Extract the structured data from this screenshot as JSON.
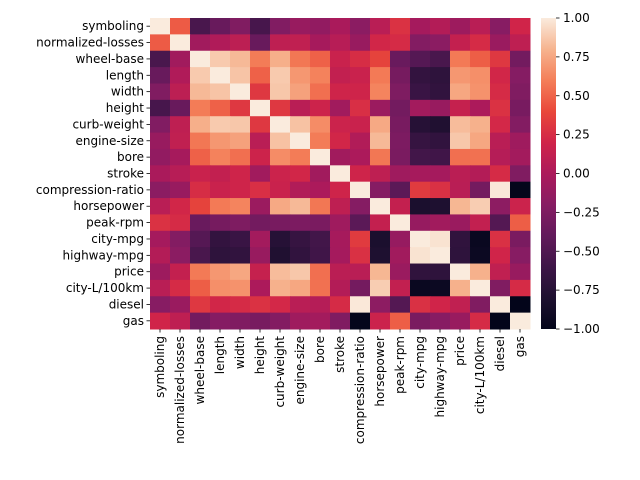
{
  "chart_data": {
    "type": "heatmap",
    "title": "",
    "xlabel": "",
    "ylabel": "",
    "rows": [
      "symboling",
      "normalized-losses",
      "wheel-base",
      "length",
      "width",
      "height",
      "curb-weight",
      "engine-size",
      "bore",
      "stroke",
      "compression-ratio",
      "horsepower",
      "peak-rpm",
      "city-mpg",
      "highway-mpg",
      "price",
      "city-L/100km",
      "diesel",
      "gas"
    ],
    "columns": [
      "symboling",
      "normalized-losses",
      "wheel-base",
      "length",
      "width",
      "height",
      "curb-weight",
      "engine-size",
      "bore",
      "stroke",
      "compression-ratio",
      "horsepower",
      "peak-rpm",
      "city-mpg",
      "highway-mpg",
      "price",
      "city-L/100km",
      "diesel",
      "gas"
    ],
    "values": [
      [
        1.0,
        0.47,
        -0.54,
        -0.37,
        -0.24,
        -0.55,
        -0.23,
        -0.11,
        -0.14,
        -0.01,
        -0.18,
        0.07,
        0.28,
        -0.04,
        0.04,
        -0.08,
        0.07,
        -0.2,
        0.2
      ],
      [
        0.47,
        1.0,
        -0.06,
        0.02,
        0.09,
        -0.37,
        0.1,
        0.11,
        -0.03,
        0.06,
        -0.11,
        0.21,
        0.24,
        -0.22,
        -0.18,
        0.13,
        0.24,
        -0.1,
        0.1
      ],
      [
        -0.54,
        -0.06,
        1.0,
        0.88,
        0.82,
        0.59,
        0.78,
        0.57,
        0.49,
        0.16,
        0.25,
        0.37,
        -0.36,
        -0.47,
        -0.54,
        0.58,
        0.48,
        0.31,
        -0.31
      ],
      [
        -0.37,
        0.02,
        0.88,
        1.0,
        0.86,
        0.49,
        0.88,
        0.69,
        0.61,
        0.12,
        0.16,
        0.58,
        -0.29,
        -0.67,
        -0.7,
        0.69,
        0.66,
        0.21,
        -0.21
      ],
      [
        -0.24,
        0.09,
        0.82,
        0.86,
        1.0,
        0.31,
        0.87,
        0.73,
        0.54,
        0.19,
        0.19,
        0.62,
        -0.25,
        -0.63,
        -0.68,
        0.75,
        0.67,
        0.24,
        -0.24
      ],
      [
        -0.55,
        -0.37,
        0.59,
        0.49,
        0.31,
        1.0,
        0.31,
        0.07,
        0.18,
        -0.06,
        0.26,
        -0.09,
        -0.31,
        -0.05,
        -0.11,
        0.14,
        0.0,
        0.28,
        -0.28
      ],
      [
        -0.23,
        0.1,
        0.78,
        0.88,
        0.87,
        0.31,
        1.0,
        0.85,
        0.65,
        0.17,
        0.16,
        0.76,
        -0.28,
        -0.75,
        -0.79,
        0.83,
        0.79,
        0.22,
        -0.22
      ],
      [
        -0.11,
        0.11,
        0.57,
        0.69,
        0.73,
        0.07,
        0.85,
        1.0,
        0.59,
        0.21,
        0.03,
        0.82,
        -0.26,
        -0.65,
        -0.68,
        0.87,
        0.75,
        0.07,
        -0.07
      ],
      [
        -0.14,
        -0.03,
        0.49,
        0.61,
        0.54,
        0.18,
        0.65,
        0.59,
        1.0,
        -0.06,
        0.0,
        0.57,
        -0.27,
        -0.58,
        -0.59,
        0.54,
        0.55,
        0.05,
        -0.05
      ],
      [
        -0.01,
        0.06,
        0.16,
        0.12,
        0.19,
        -0.06,
        0.17,
        0.21,
        -0.06,
        1.0,
        0.19,
        0.1,
        -0.07,
        -0.03,
        -0.04,
        0.08,
        0.04,
        0.24,
        -0.24
      ],
      [
        -0.18,
        -0.11,
        0.25,
        0.16,
        0.19,
        0.26,
        0.16,
        0.03,
        0.0,
        0.19,
        1.0,
        -0.21,
        -0.44,
        0.33,
        0.27,
        0.07,
        -0.3,
        0.99,
        -0.99
      ],
      [
        0.07,
        0.21,
        0.37,
        0.58,
        0.62,
        -0.09,
        0.76,
        0.82,
        0.57,
        0.1,
        -0.21,
        1.0,
        0.13,
        -0.82,
        -0.8,
        0.81,
        0.89,
        -0.17,
        0.17
      ],
      [
        0.28,
        0.24,
        -0.36,
        -0.29,
        -0.25,
        -0.31,
        -0.28,
        -0.26,
        -0.27,
        -0.07,
        -0.44,
        0.13,
        1.0,
        -0.12,
        -0.06,
        -0.1,
        0.12,
        -0.48,
        0.48
      ],
      [
        -0.04,
        -0.22,
        -0.47,
        -0.67,
        -0.63,
        -0.05,
        -0.75,
        -0.65,
        -0.58,
        -0.03,
        0.33,
        -0.82,
        -0.12,
        1.0,
        0.97,
        -0.69,
        -0.95,
        0.27,
        -0.27
      ],
      [
        0.04,
        -0.18,
        -0.54,
        -0.7,
        -0.68,
        -0.11,
        -0.79,
        -0.68,
        -0.59,
        -0.04,
        0.27,
        -0.8,
        -0.06,
        0.97,
        1.0,
        -0.7,
        -0.93,
        0.2,
        -0.2
      ],
      [
        -0.08,
        0.13,
        0.58,
        0.69,
        0.75,
        0.14,
        0.83,
        0.87,
        0.54,
        0.08,
        0.07,
        0.81,
        -0.1,
        -0.69,
        -0.7,
        1.0,
        0.79,
        0.11,
        -0.11
      ],
      [
        0.07,
        0.24,
        0.48,
        0.66,
        0.67,
        0.0,
        0.79,
        0.75,
        0.55,
        0.04,
        -0.3,
        0.89,
        0.12,
        -0.95,
        -0.93,
        0.79,
        1.0,
        -0.24,
        0.24
      ],
      [
        -0.2,
        -0.1,
        0.31,
        0.21,
        0.24,
        0.28,
        0.22,
        0.07,
        0.05,
        0.24,
        0.99,
        -0.17,
        -0.48,
        0.27,
        0.2,
        0.11,
        -0.24,
        1.0,
        -1.0
      ],
      [
        0.2,
        0.1,
        -0.31,
        -0.21,
        -0.24,
        -0.28,
        -0.22,
        -0.07,
        -0.05,
        -0.24,
        -0.99,
        0.17,
        0.48,
        -0.27,
        -0.2,
        -0.11,
        0.24,
        -1.0,
        1.0
      ]
    ],
    "vmin": -1.0,
    "vmax": 1.0,
    "colormap": "rocket",
    "colorbar": {
      "ticks": [
        1.0,
        0.75,
        0.5,
        0.25,
        0.0,
        -0.25,
        -0.5,
        -0.75,
        -1.0
      ],
      "tick_labels": [
        "1.00",
        "0.75",
        "0.50",
        "0.25",
        "0.00",
        "−0.25",
        "−0.50",
        "−0.75",
        "−1.00"
      ]
    }
  }
}
